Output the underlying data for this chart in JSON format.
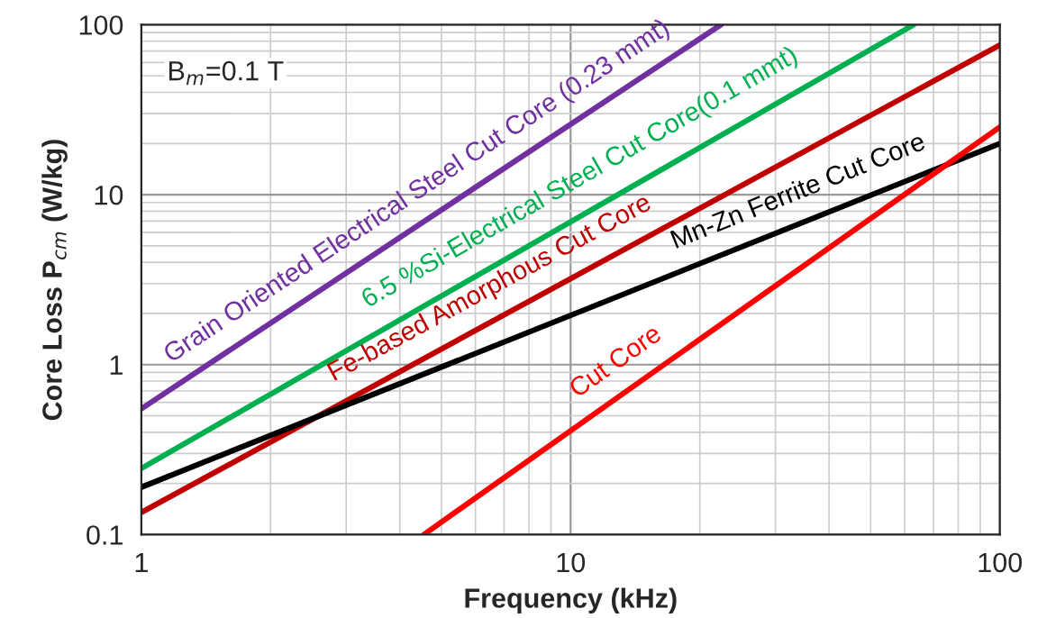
{
  "chart_data": {
    "type": "line",
    "xlabel": "Frequency (kHz)",
    "ylabel": "Core Loss P$_{cm}$ (W/kg)",
    "log": "xy",
    "xlim": [
      1,
      100
    ],
    "ylim": [
      0.1,
      100
    ],
    "xticks": [
      1,
      10,
      100
    ],
    "yticks": [
      0.1,
      1,
      10,
      100
    ],
    "grid": true,
    "series": [
      {
        "color": "#7030a0",
        "x": [
          1,
          22.4
        ],
        "values": [
          0.55,
          100
        ]
      },
      {
        "color": "#00b050",
        "x": [
          1,
          63
        ],
        "values": [
          0.245,
          100
        ]
      },
      {
        "color": "#c00000",
        "x": [
          1,
          100
        ],
        "values": [
          0.135,
          76
        ]
      },
      {
        "color": "#000000",
        "x": [
          1,
          100
        ],
        "values": [
          0.19,
          20
        ]
      },
      {
        "color": "#ff0000",
        "x": [
          4.55,
          100
        ],
        "values": [
          0.1,
          25
        ]
      }
    ],
    "annotations": [
      "B$_{m}$=0.1 T",
      {
        "text": "Grain Oriented Electrical Steel Cut Core (0.23 mmt)",
        "x": 4.8,
        "y": 7.4
      },
      {
        "text": "6.5 %Si-Electrical Steel Cut Core(0.1 mmt)",
        "x": 11.4,
        "y": 8.8
      },
      {
        "text": "Fe-based Amorphous Cut Core",
        "x": 7.0,
        "y": 1.96
      },
      {
        "text": "Mn-Zn Ferrite Cut Core",
        "x": 36,
        "y": 7.1
      },
      {
        "text": "Cut Core",
        "x": 14,
        "y": 0.74
      }
    ]
  }
}
